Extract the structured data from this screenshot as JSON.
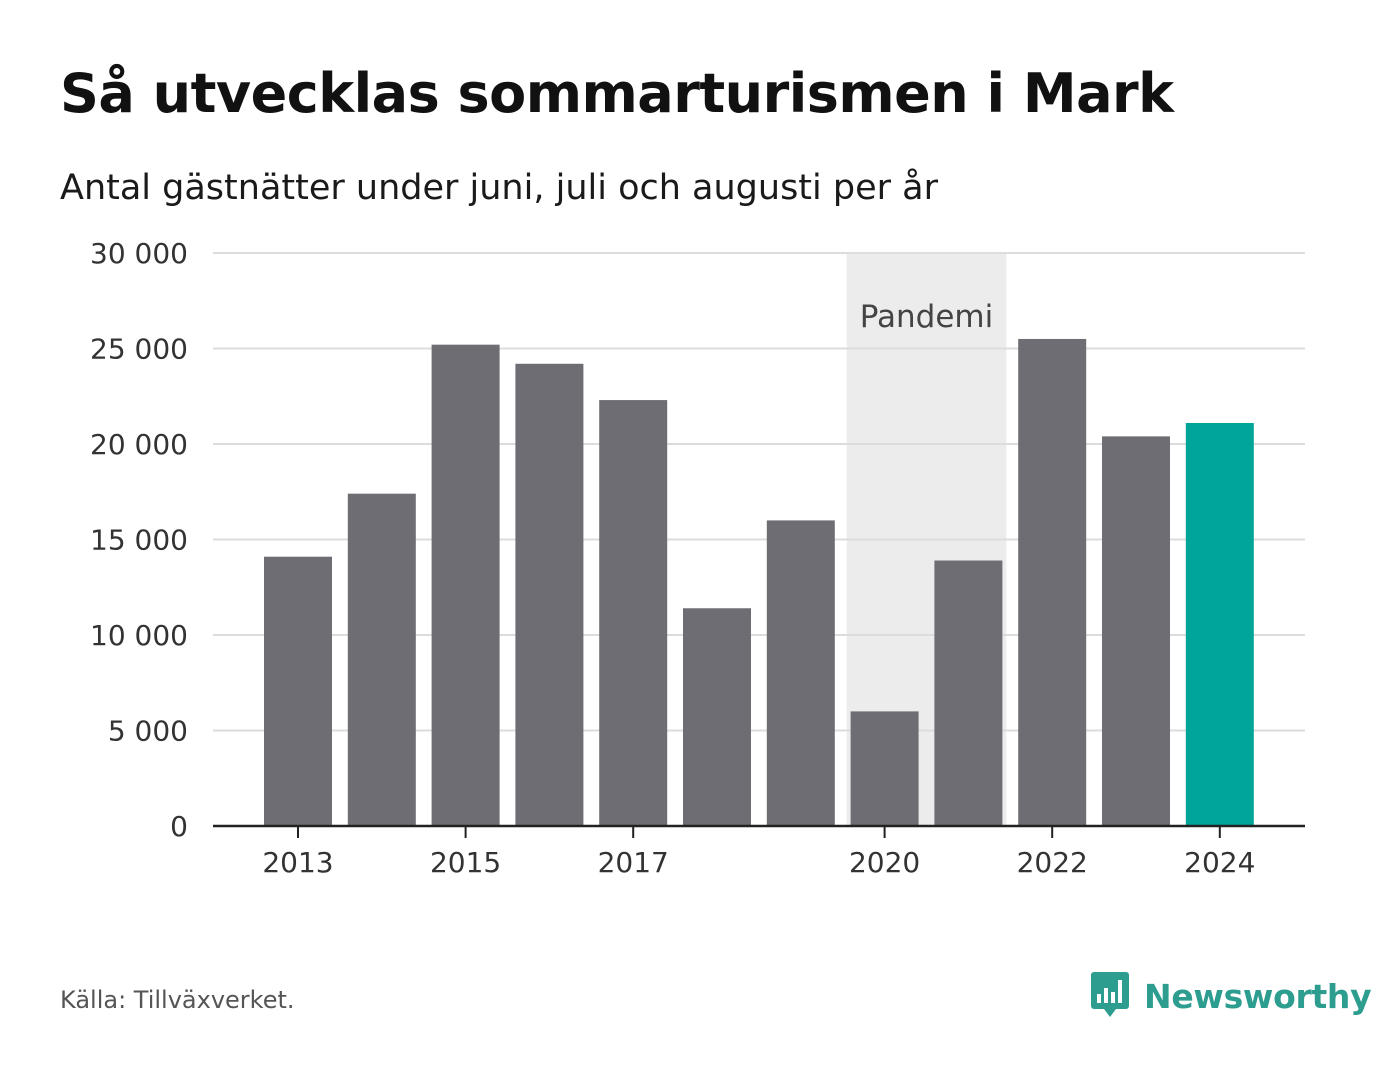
{
  "header": {
    "title": "Så utvecklas sommarturismen i Mark",
    "subtitle": "Antal gästnätter under juni, juli och augusti per år"
  },
  "chart_data": {
    "type": "bar",
    "categories": [
      "2013",
      "2014",
      "2015",
      "2016",
      "2017",
      "2018",
      "2019",
      "2020",
      "2021",
      "2022",
      "2023",
      "2024"
    ],
    "values": [
      14100,
      17400,
      25200,
      24200,
      22300,
      11400,
      16000,
      6000,
      13900,
      25500,
      20400,
      21100
    ],
    "ylim": [
      0,
      30000
    ],
    "yticks": [
      0,
      5000,
      10000,
      15000,
      20000,
      25000,
      30000
    ],
    "ytick_labels": [
      "0",
      "5 000",
      "10 000",
      "15 000",
      "20 000",
      "25 000",
      "30 000"
    ],
    "xtick_labels": [
      "2013",
      "2015",
      "2017",
      "2020",
      "2022",
      "2024"
    ],
    "grid": true,
    "bar_color": "#6e6d74",
    "highlight_color": "#00a59a",
    "highlight_category": "2024",
    "annotations": [
      {
        "label": "Pandemi",
        "from": "2020",
        "to": "2021",
        "color": "#ececec"
      }
    ]
  },
  "footer": {
    "source": "Källa: Tillväxverket.",
    "brand": "Newsworthy",
    "brand_color": "#2d9d8f",
    "brand_icon": "bar-chart-speech-bubble-icon"
  }
}
